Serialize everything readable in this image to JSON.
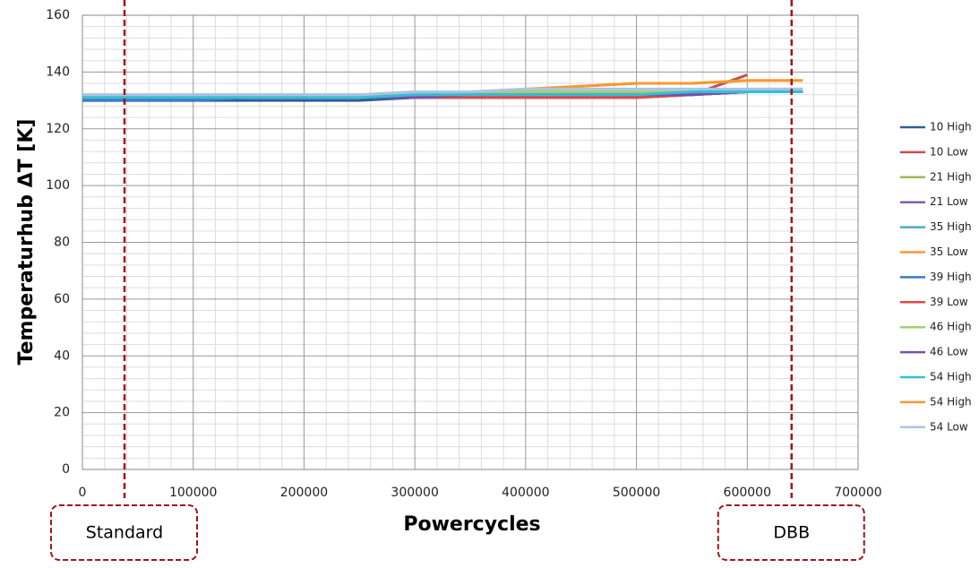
{
  "chart_data": {
    "type": "line",
    "xlabel": "Powercycles",
    "ylabel": "Temperaturhub ΔT [K]",
    "x": [
      0,
      50000,
      100000,
      150000,
      200000,
      250000,
      300000,
      350000,
      400000,
      450000,
      500000,
      550000,
      600000,
      650000
    ],
    "series": [
      {
        "name": "10 High",
        "color": "#2c5e9c",
        "values": [
          130,
          130,
          130,
          130,
          130,
          130,
          131,
          131,
          131,
          131,
          132,
          132,
          133,
          133
        ]
      },
      {
        "name": "10 Low",
        "color": "#c0504d",
        "values": [
          131,
          131,
          131,
          131,
          131,
          131,
          131,
          131,
          131,
          131,
          131,
          132,
          139,
          null
        ]
      },
      {
        "name": "21 High",
        "color": "#9bbb59",
        "values": [
          131,
          131,
          131,
          131,
          131,
          131,
          131,
          131,
          132,
          132,
          132,
          133,
          133,
          133
        ]
      },
      {
        "name": "21 Low",
        "color": "#7f5fa6",
        "values": [
          131,
          131,
          131,
          131,
          131,
          131,
          132,
          132,
          132,
          132,
          132,
          133,
          133,
          134
        ]
      },
      {
        "name": "35 High",
        "color": "#4bacc6",
        "values": [
          131,
          131,
          131,
          131,
          131,
          131,
          132,
          132,
          132,
          132,
          133,
          133,
          133,
          133
        ]
      },
      {
        "name": "35 Low",
        "color": "#f79646",
        "values": [
          131,
          131,
          131,
          131,
          131,
          132,
          132,
          133,
          133,
          135,
          136,
          136,
          137,
          137
        ]
      },
      {
        "name": "39 High",
        "color": "#3a7cc8",
        "values": [
          130,
          130,
          130,
          131,
          131,
          131,
          131,
          131,
          132,
          132,
          132,
          132,
          133,
          133
        ]
      },
      {
        "name": "39 Low",
        "color": "#e04a46",
        "values": [
          131,
          131,
          131,
          131,
          131,
          131,
          131,
          131,
          131,
          131,
          131,
          132,
          133,
          133
        ]
      },
      {
        "name": "46 High",
        "color": "#a6cf6c",
        "values": [
          131,
          131,
          132,
          132,
          132,
          132,
          132,
          132,
          133,
          133,
          133,
          133,
          134,
          134
        ]
      },
      {
        "name": "46 Low",
        "color": "#7650a8",
        "values": [
          131,
          131,
          131,
          131,
          131,
          131,
          131,
          132,
          132,
          132,
          132,
          132,
          133,
          133
        ]
      },
      {
        "name": "54 High",
        "color": "#2fc0d8",
        "values": [
          131,
          131,
          131,
          131,
          131,
          131,
          132,
          132,
          132,
          132,
          132,
          133,
          133,
          133
        ]
      },
      {
        "name": "54 High",
        "color": "#f7992e",
        "values": [
          132,
          132,
          132,
          132,
          132,
          132,
          133,
          133,
          134,
          135,
          136,
          136,
          137,
          137
        ]
      },
      {
        "name": "54 Low",
        "color": "#a9c4e8",
        "values": [
          132,
          132,
          132,
          132,
          132,
          132,
          133,
          133,
          134,
          134,
          134,
          134,
          134,
          134
        ]
      }
    ],
    "xlim": [
      0,
      700000
    ],
    "xticks": [
      0,
      100000,
      200000,
      300000,
      400000,
      500000,
      600000,
      700000
    ],
    "ylim": [
      0,
      160
    ],
    "yticks": [
      0,
      20,
      40,
      60,
      80,
      100,
      120,
      140,
      160
    ],
    "grid": true,
    "legend": "right",
    "markers": [
      {
        "x": 38000,
        "label": "Standard",
        "color": "#a0151b"
      },
      {
        "x": 640000,
        "label": "DBB",
        "color": "#a0151b"
      }
    ]
  }
}
